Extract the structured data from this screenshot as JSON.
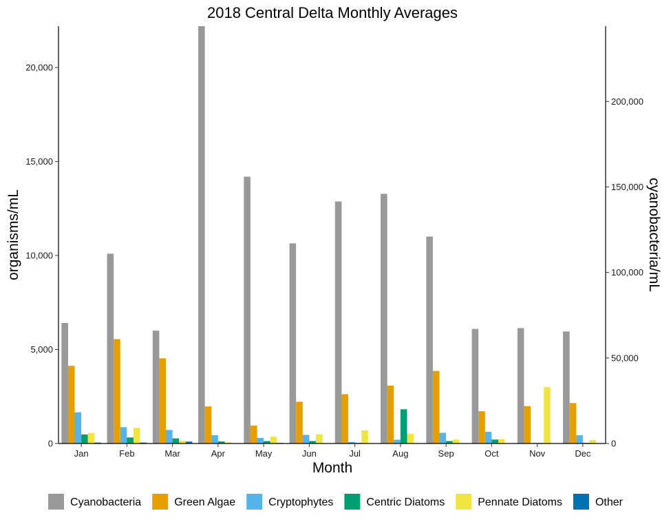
{
  "chart_data": {
    "type": "bar",
    "title": "2018 Central Delta Monthly Averages",
    "xlabel": "Month",
    "ylabel": "organisms/mL",
    "ylabel_right": "cyanobacteria/mL",
    "categories": [
      "Jan",
      "Feb",
      "Mar",
      "Apr",
      "May",
      "Jun",
      "Jul",
      "Aug",
      "Sep",
      "Oct",
      "Nov",
      "Dec"
    ],
    "ylim": [
      0,
      22200
    ],
    "yticks": [
      0,
      5000,
      10000,
      15000,
      20000
    ],
    "ytick_labels": [
      "0",
      "5,000",
      "10,000",
      "15,000",
      "20,000"
    ],
    "ylim_right": [
      0,
      244000
    ],
    "yticks_right": [
      0,
      50000,
      100000,
      150000,
      200000
    ],
    "ytick_labels_right": [
      "0",
      "50,000",
      "100,000",
      "150,000",
      "200,000"
    ],
    "grid": false,
    "legend_position": "bottom",
    "series": [
      {
        "name": "Cyanobacteria",
        "color": "#999999",
        "axis": "right",
        "values": [
          70500,
          111000,
          66000,
          244000,
          156000,
          117000,
          141500,
          146000,
          121000,
          67000,
          67500,
          65500
        ]
      },
      {
        "name": "Green Algae",
        "color": "#E69F00",
        "axis": "left",
        "values": [
          4130,
          5550,
          4530,
          1970,
          950,
          2220,
          2620,
          3080,
          3860,
          1720,
          1990,
          2150
        ]
      },
      {
        "name": "Cryptophytes",
        "color": "#56B4E9",
        "axis": "left",
        "values": [
          1660,
          870,
          720,
          440,
          300,
          460,
          80,
          200,
          570,
          620,
          30,
          440
        ]
      },
      {
        "name": "Centric Diatoms",
        "color": "#009E73",
        "axis": "left",
        "values": [
          480,
          320,
          270,
          110,
          130,
          130,
          30,
          1820,
          130,
          210,
          30,
          30
        ]
      },
      {
        "name": "Pennate Diatoms",
        "color": "#F0E442",
        "axis": "left",
        "values": [
          560,
          830,
          140,
          60,
          360,
          490,
          700,
          510,
          210,
          230,
          3000,
          190
        ]
      },
      {
        "name": "Other",
        "color": "#0072B2",
        "axis": "left",
        "values": [
          50,
          50,
          100,
          20,
          30,
          20,
          10,
          20,
          20,
          10,
          10,
          10
        ]
      }
    ]
  }
}
